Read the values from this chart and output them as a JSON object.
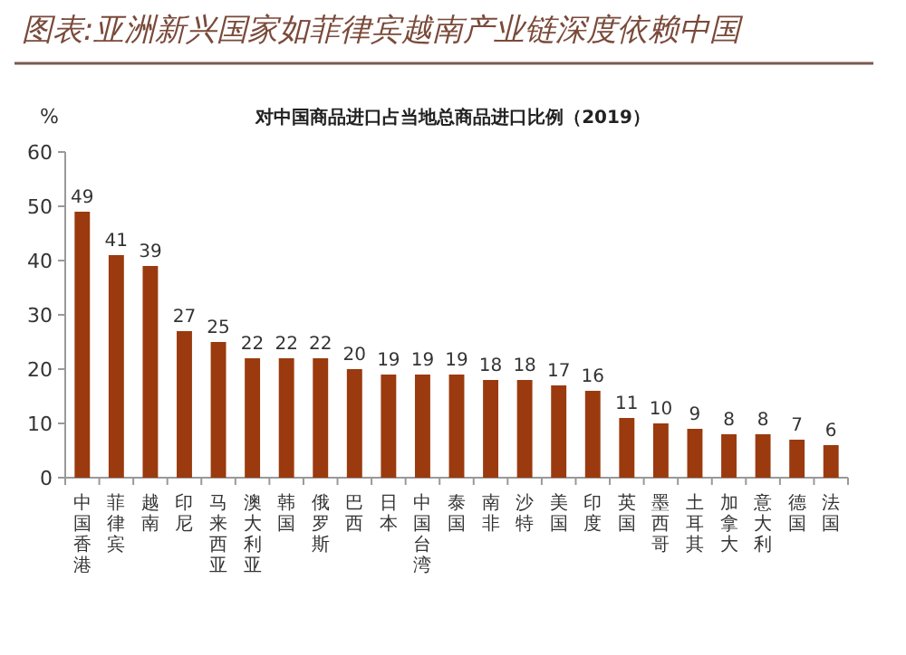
{
  "chart_data": {
    "type": "bar",
    "title": "图表:亚洲新兴国家如菲律宾越南产业链深度依赖中国",
    "subtitle": "对中国商品进口占当地总商品进口比例（2019）",
    "ylabel": "%",
    "categories": [
      "中国香港",
      "菲律宾",
      "越南",
      "印尼",
      "马来西亚",
      "澳大利亚",
      "韩国",
      "俄罗斯",
      "巴西",
      "日本",
      "中国台湾",
      "泰国",
      "南非",
      "沙特",
      "美国",
      "印度",
      "英国",
      "墨西哥",
      "土耳其",
      "加拿大",
      "意大利",
      "德国",
      "法国"
    ],
    "values": [
      49,
      41,
      39,
      27,
      25,
      22,
      22,
      22,
      20,
      19,
      19,
      19,
      18,
      18,
      17,
      16,
      11,
      10,
      9,
      8,
      8,
      7,
      6
    ],
    "color": "#9b3a0e",
    "ylim": [
      0,
      60
    ],
    "yticks": [
      0,
      10,
      20,
      30,
      40,
      50,
      60
    ],
    "data_labels": true
  }
}
